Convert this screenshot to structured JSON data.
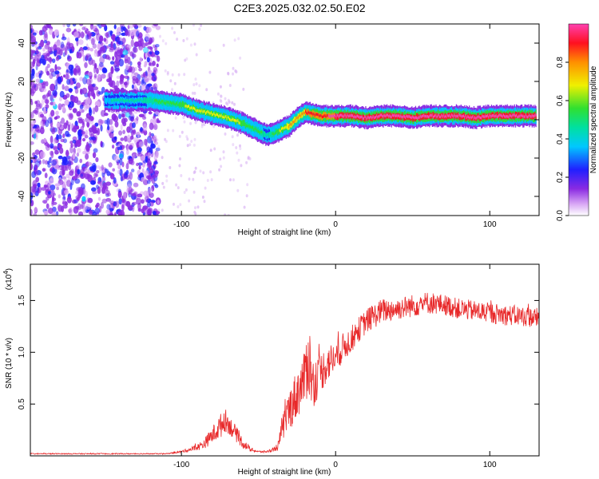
{
  "figure": {
    "title": "C2E3.2025.032.02.50.E02"
  },
  "chart_data": [
    {
      "type": "heatmap",
      "panel": "spectrogram",
      "xlabel": "Height of straight line (km)",
      "ylabel": "Frequency (Hz)",
      "xlim": [
        -198,
        132
      ],
      "ylim": [
        -50,
        50
      ],
      "xticks": [
        -100,
        0,
        100
      ],
      "yticks": [
        -40,
        -20,
        0,
        20,
        40
      ],
      "colorbar": {
        "label": "Normalized spectral amplitude",
        "range": [
          0,
          1
        ],
        "ticks": [
          0.0,
          0.2,
          0.4,
          0.6,
          0.8
        ],
        "tick_labels": [
          "0.0",
          "0.2",
          "0.4",
          "0.6",
          "0.8"
        ]
      },
      "ridge": {
        "x": [
          -150,
          -130,
          -120,
          -110,
          -100,
          -90,
          -80,
          -70,
          -60,
          -50,
          -45,
          -40,
          -35,
          -30,
          -25,
          -20,
          -15,
          -10,
          -5,
          0,
          10,
          20,
          30,
          40,
          50,
          60,
          70,
          80,
          90,
          100,
          110,
          120,
          130
        ],
        "y": [
          10,
          10,
          10,
          9,
          8,
          5,
          3,
          1,
          -2,
          -6,
          -8,
          -7,
          -5,
          -3,
          1,
          4,
          3,
          2,
          2,
          2,
          2,
          1,
          2,
          2,
          1,
          2,
          2,
          2,
          1,
          2,
          2,
          2,
          2
        ],
        "amplitude": [
          0.35,
          0.4,
          0.45,
          0.5,
          0.55,
          0.6,
          0.6,
          0.6,
          0.55,
          0.5,
          0.4,
          0.5,
          0.6,
          0.7,
          0.75,
          0.8,
          0.85,
          0.9,
          0.9,
          0.95,
          0.95,
          0.95,
          0.95,
          0.95,
          0.95,
          0.95,
          0.95,
          0.95,
          0.95,
          0.95,
          0.95,
          0.95,
          0.95
        ]
      },
      "noise_region_x": [
        -198,
        -115
      ]
    },
    {
      "type": "line",
      "panel": "snr",
      "xlabel": "Height of straight line (km)",
      "ylabel": "SNR (10 * v/v)",
      "y_exponent_label": "(x10",
      "y_exponent_value": "4",
      "y_exponent_close": ")",
      "xlim": [
        -198,
        132
      ],
      "ylim": [
        0,
        1.85
      ],
      "xticks": [
        -100,
        0,
        100
      ],
      "yticks": [
        0.5,
        1.0,
        1.5
      ],
      "ytick_labels": [
        "0.5",
        "1.0",
        "1.5"
      ],
      "series": [
        {
          "color": "#e8292a",
          "x": [
            -198,
            -140,
            -110,
            -100,
            -95,
            -90,
            -85,
            -80,
            -75,
            -72,
            -70,
            -65,
            -60,
            -55,
            -50,
            -45,
            -40,
            -37,
            -35,
            -30,
            -25,
            -20,
            -18,
            -15,
            -10,
            -5,
            0,
            5,
            10,
            15,
            20,
            25,
            30,
            40,
            50,
            60,
            70,
            80,
            90,
            100,
            110,
            120,
            132
          ],
          "y": [
            0.02,
            0.02,
            0.02,
            0.04,
            0.06,
            0.08,
            0.12,
            0.2,
            0.28,
            0.35,
            0.32,
            0.22,
            0.12,
            0.06,
            0.04,
            0.04,
            0.06,
            0.1,
            0.25,
            0.45,
            0.6,
            0.75,
            1.0,
            0.7,
            0.8,
            0.9,
            0.95,
            1.05,
            1.12,
            1.22,
            1.3,
            1.35,
            1.4,
            1.42,
            1.45,
            1.48,
            1.46,
            1.42,
            1.4,
            1.38,
            1.36,
            1.35,
            1.33
          ],
          "noise_amplitude": [
            0.005,
            0.005,
            0.005,
            0.01,
            0.02,
            0.03,
            0.05,
            0.08,
            0.12,
            0.12,
            0.1,
            0.08,
            0.05,
            0.02,
            0.01,
            0.01,
            0.02,
            0.05,
            0.12,
            0.2,
            0.25,
            0.25,
            0.45,
            0.25,
            0.2,
            0.18,
            0.15,
            0.14,
            0.13,
            0.12,
            0.12,
            0.12,
            0.12,
            0.11,
            0.11,
            0.11,
            0.1,
            0.1,
            0.1,
            0.1,
            0.1,
            0.1,
            0.1
          ]
        }
      ]
    }
  ]
}
